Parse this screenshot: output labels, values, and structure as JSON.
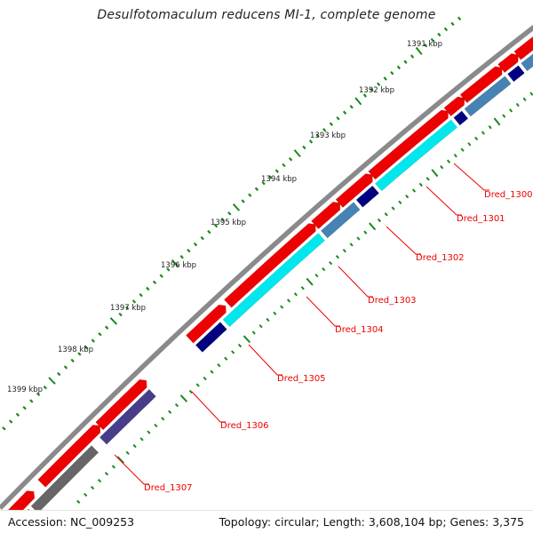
{
  "title": "Desulfotomaculum reducens MI-1, complete genome",
  "footer": {
    "accession": "Accession: NC_009253",
    "summary": "Topology: circular; Length: 3,608,104 bp; Genes: 3,375"
  },
  "ruler_labels": [
    "1391 kbp",
    "1392 kbp",
    "1393 kbp",
    "1394 kbp",
    "1395 kbp",
    "1396 kbp",
    "1397 kbp",
    "1398 kbp",
    "1399 kbp"
  ],
  "gene_labels": [
    "Dred_1300",
    "Dred_1301",
    "Dred_1302",
    "Dred_1303",
    "Dred_1304",
    "Dred_1305",
    "Dred_1306",
    "Dred_1307"
  ],
  "colors": {
    "backbone": "#8a8a8a",
    "forward_cds": "#ee0000",
    "cyan_cds": "#00e8ee",
    "navy_cds": "#000080",
    "steel_cds": "#4682b4",
    "slate_cds": "#483d8b",
    "grey_cds": "#666666",
    "tick": "#1a8a1a",
    "label_line": "#ee0000",
    "label_text": "#ee0000"
  }
}
